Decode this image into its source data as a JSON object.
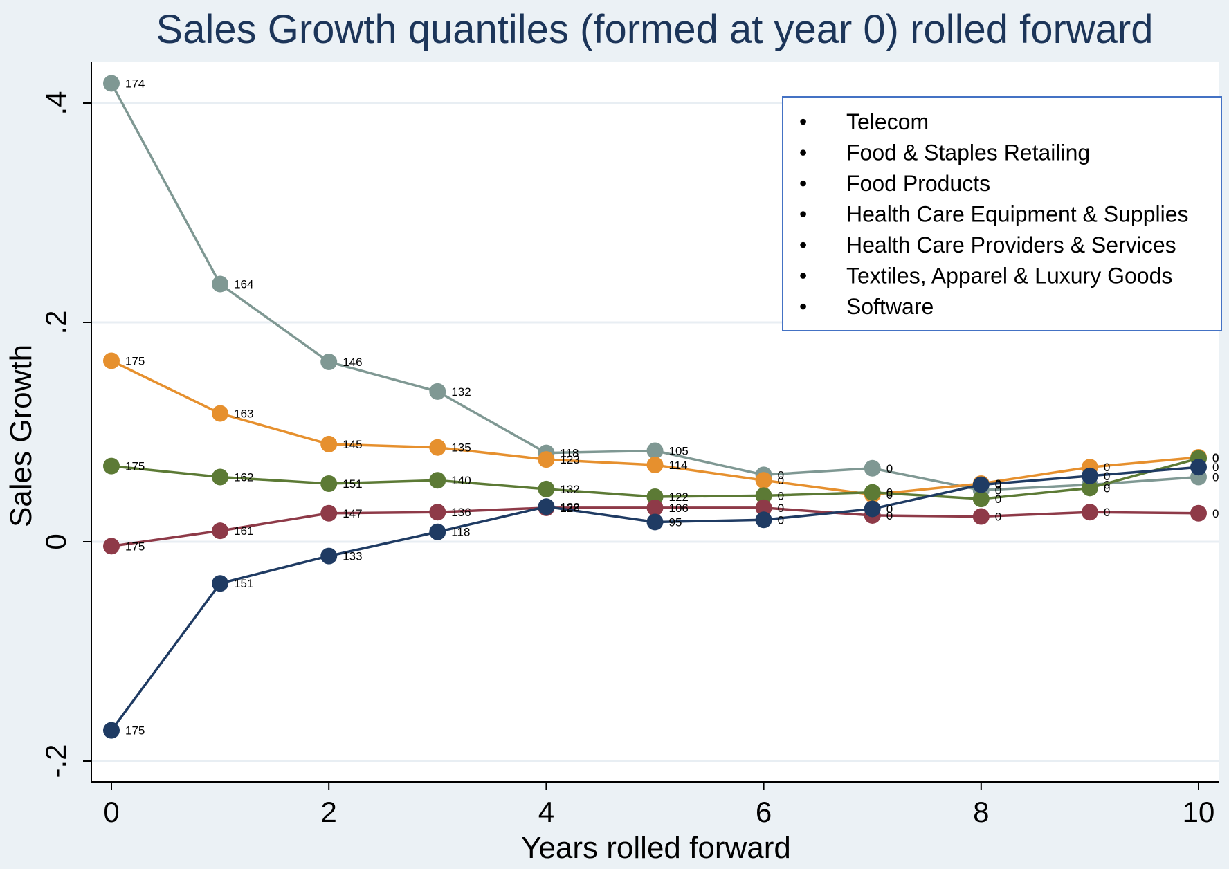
{
  "chart_data": {
    "type": "line",
    "title": "Sales Growth quantiles (formed at year 0) rolled forward",
    "xlabel": "Years rolled forward",
    "ylabel": "Sales Growth",
    "xlim": [
      0,
      10
    ],
    "ylim": [
      -0.2,
      0.4
    ],
    "x_ticks": [
      0,
      2,
      4,
      6,
      8,
      10
    ],
    "x_tick_labels": [
      "0",
      "2",
      "4",
      "6",
      "8",
      "10"
    ],
    "y_ticks": [
      -0.2,
      0,
      0.2,
      0.4
    ],
    "y_tick_labels": [
      "-.2",
      "0",
      ".2",
      ".4"
    ],
    "grid": "horizontal",
    "x": [
      0,
      1,
      2,
      3,
      4,
      5,
      6,
      7,
      8,
      9,
      10
    ],
    "series": [
      {
        "color": "#7f9893",
        "values": [
          0.418,
          0.235,
          0.164,
          0.137,
          0.081,
          0.083,
          0.061,
          0.067,
          0.047,
          0.052,
          0.059
        ],
        "labels": [
          "174",
          "164",
          "146",
          "132",
          "118",
          "105",
          "0",
          "0",
          "0",
          "0",
          "0"
        ]
      },
      {
        "color": "#e6902e",
        "values": [
          0.165,
          0.117,
          0.089,
          0.086,
          0.075,
          0.07,
          0.056,
          0.043,
          0.053,
          0.068,
          0.077
        ],
        "labels": [
          "175",
          "163",
          "145",
          "135",
          "123",
          "114",
          "0",
          "0",
          "0",
          "0",
          "0"
        ]
      },
      {
        "color": "#5c7a35",
        "values": [
          0.069,
          0.059,
          0.053,
          0.056,
          0.048,
          0.041,
          0.042,
          0.045,
          0.039,
          0.049,
          0.076
        ],
        "labels": [
          "175",
          "162",
          "151",
          "140",
          "132",
          "122",
          "0",
          "0",
          "0",
          "0",
          "0"
        ]
      },
      {
        "color": "#8e3a48",
        "values": [
          -0.004,
          0.01,
          0.026,
          0.027,
          0.031,
          0.031,
          0.031,
          0.024,
          0.023,
          0.027,
          0.026
        ],
        "labels": [
          "175",
          "161",
          "147",
          "136",
          "128",
          "106",
          "0",
          "0",
          "0",
          "0",
          "0"
        ]
      },
      {
        "color": "#1f3b63",
        "values": [
          -0.172,
          -0.038,
          -0.013,
          0.009,
          0.032,
          0.018,
          0.02,
          0.03,
          0.052,
          0.06,
          0.068
        ],
        "labels": [
          "175",
          "151",
          "133",
          "118",
          "122",
          "95",
          "0",
          "0",
          "0",
          "0",
          "0"
        ]
      }
    ],
    "legend": {
      "position": "top-right",
      "items": [
        "Telecom",
        "Food & Staples Retailing",
        "Food Products",
        "Health Care Equipment & Supplies",
        "Health Care Providers & Services",
        "Textiles, Apparel & Luxury Goods",
        "Software"
      ],
      "bullet": "•",
      "border_color": "#4472c4"
    }
  }
}
